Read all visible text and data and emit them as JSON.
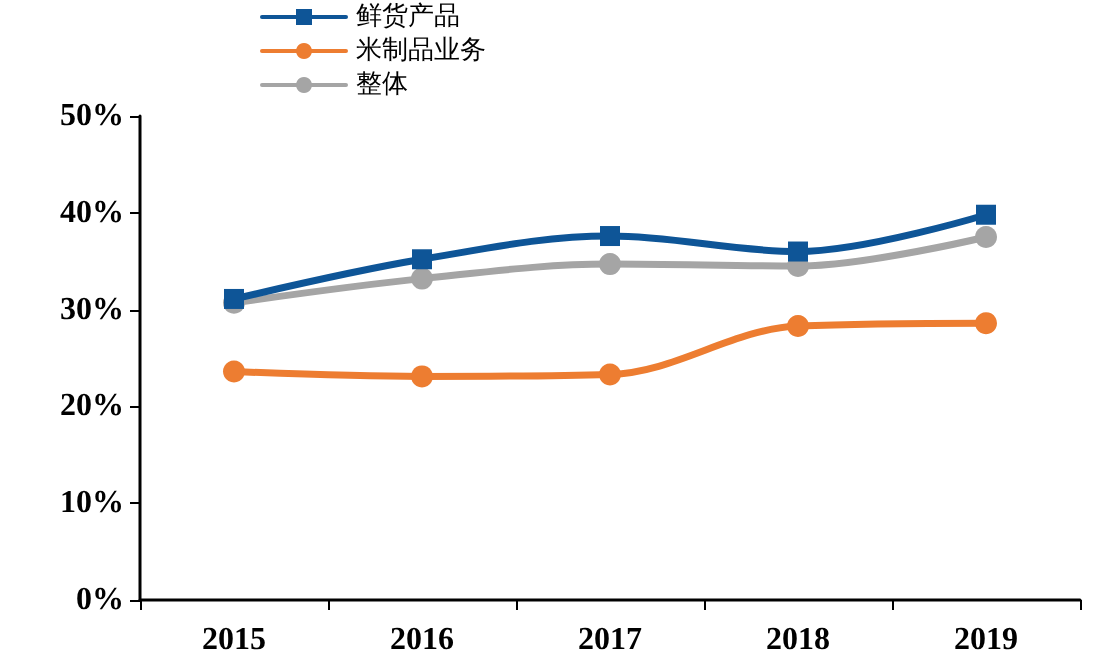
{
  "chart_data": {
    "type": "line",
    "categories": [
      "2015",
      "2016",
      "2017",
      "2018",
      "2019"
    ],
    "series": [
      {
        "name": "鲜货产品",
        "color": "#0e5597",
        "marker": "square",
        "values": [
          31.1,
          35.2,
          37.6,
          36.0,
          39.8
        ]
      },
      {
        "name": "米制品业务",
        "color": "#ed7d31",
        "marker": "circle",
        "values": [
          23.6,
          23.1,
          23.3,
          28.3,
          28.6
        ]
      },
      {
        "name": "整体",
        "color": "#a5a5a5",
        "marker": "circle",
        "values": [
          30.7,
          33.2,
          34.7,
          34.5,
          37.5
        ]
      }
    ],
    "ylim": [
      0,
      50
    ],
    "yticks": [
      {
        "value": 0,
        "label": "0%"
      },
      {
        "value": 10,
        "label": "10%"
      },
      {
        "value": 20,
        "label": "20%"
      },
      {
        "value": 30,
        "label": "30%"
      },
      {
        "value": 40,
        "label": "40%"
      },
      {
        "value": 50,
        "label": "50%"
      }
    ],
    "legend": "top",
    "grid": false,
    "line_style": "solid"
  }
}
